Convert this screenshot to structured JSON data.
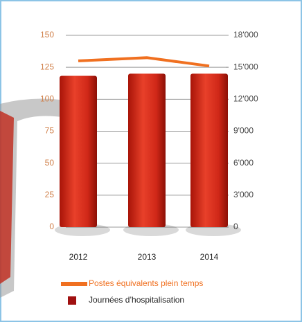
{
  "chart_data": {
    "type": "bar-line",
    "categories": [
      "2012",
      "2013",
      "2014"
    ],
    "series": [
      {
        "name": "Journées d’hospitalisation",
        "color": "#d42a1a",
        "type": "bar",
        "axis": "y2",
        "values": [
          14200,
          14400,
          14400
        ]
      },
      {
        "name": "Postes équivalents plein temps",
        "color": "#f07020",
        "type": "line",
        "values": [
          130,
          132.5,
          126
        ]
      }
    ],
    "ylim": [
      0,
      150
    ],
    "yticks": [
      0,
      25,
      50,
      75,
      100,
      125,
      150
    ],
    "y2lim": [
      0,
      18000
    ],
    "y2ticks": [
      0,
      {
        "value": 3000,
        "label": "3'000"
      },
      {
        "value": 6000,
        "label": "6'000"
      },
      {
        "value": 9000,
        "label": "9'000"
      },
      {
        "value": 12000,
        "label": "12'000"
      },
      {
        "value": 15000,
        "label": "15'000"
      },
      {
        "value": 18000,
        "label": "18'000"
      }
    ],
    "grid": true
  }
}
